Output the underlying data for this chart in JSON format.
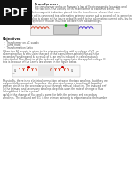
{
  "title": "Transformers",
  "sub_line1": "the transformer works on Faraday's law of Electromagnetic Induction and",
  "sub_line2": "the two coils, the working of the transformer is explained below. The",
  "sub_line3": "transformer works on electromagnetic induction placed into the transformer shown their core.",
  "para1_line1": "The primary or first side coil is connected to a alternating primary source and a second coil is connected",
  "para1_line2": "is called secondary winding is shown in the figure below. In order to the alternating current coils, but here",
  "para1_line3": "an alternating flow is required for mutual induction between the two windings.",
  "section_title": "Objectives",
  "bullet1": "Transformer on AC supply",
  "bullet2": "Turns Ratio",
  "bullet3": "Transformation Ratio",
  "para2_line1": "When the AC supply is given to the primary winding with a voltage of V1, an",
  "para2_line2": "alternating flux is sets up in the core of the transformer, which links with the",
  "para2_line3": "secondary winding and as a result of it, an emf is induced in called mutually",
  "para2_line4": "inductioned. The direction of the induced emf is opposite to the applied voltage V1,",
  "para2_line5": "this is because of the Lenz's law shown in the figure below.",
  "para3_line1": "Physically, there is no electrical connection between the two windings, but they are",
  "para3_line2": "magnetically connected. Therefore, the electrical power is transferred from the",
  "para3_line3": "primary circuit to the secondary circuit through mutual induction. The induced emf",
  "para3_line4": "in the primary and secondary windings depends upon the rate of change of flux",
  "para3_line5": "linkage that is in the system.",
  "para4_line1": "dφ/dt is the change of flux and is same for both the primary and secondary",
  "para4_line2": "windings. The induced emf E1 in the primary winding is proportional to the number",
  "bg_color": "#ffffff",
  "text_color": "#555555",
  "pdf_bg_color": "#111111",
  "pdf_text_color": "#ffffff"
}
